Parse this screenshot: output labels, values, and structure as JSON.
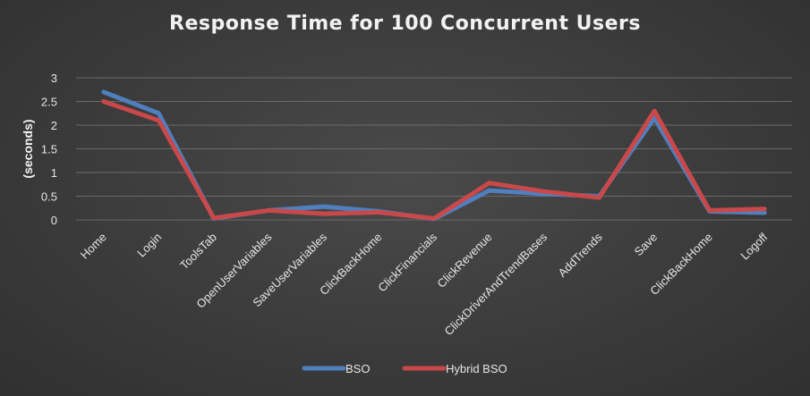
{
  "chart_data": {
    "type": "line",
    "title": "Response Time for 100 Concurrent Users",
    "xlabel": "",
    "ylabel": "(seconds)",
    "ylim": [
      0,
      3
    ],
    "yticks": [
      "0",
      "0.5",
      "1",
      "1.5",
      "2",
      "2.5",
      "3"
    ],
    "categories": [
      "Home",
      "Login",
      "ToolsTab",
      "OpenUserVariables",
      "SaveUserVariables",
      "ClickBackHome",
      "ClickFinancials",
      "ClickRevenue",
      "ClickDriverAndTrendBases",
      "AddTrends",
      "Save",
      "ClickBackHome",
      "Logoff"
    ],
    "grid": true,
    "legend_position": "bottom",
    "series": [
      {
        "name": "BSO",
        "color": "#4f7fbf",
        "values": [
          2.7,
          2.25,
          0.03,
          0.2,
          0.28,
          0.18,
          0.02,
          0.62,
          0.55,
          0.5,
          2.15,
          0.18,
          0.15
        ]
      },
      {
        "name": "Hybrid BSO",
        "color": "#c9484a",
        "values": [
          2.5,
          2.1,
          0.04,
          0.2,
          0.13,
          0.16,
          0.03,
          0.78,
          0.6,
          0.47,
          2.3,
          0.2,
          0.23
        ]
      }
    ]
  }
}
